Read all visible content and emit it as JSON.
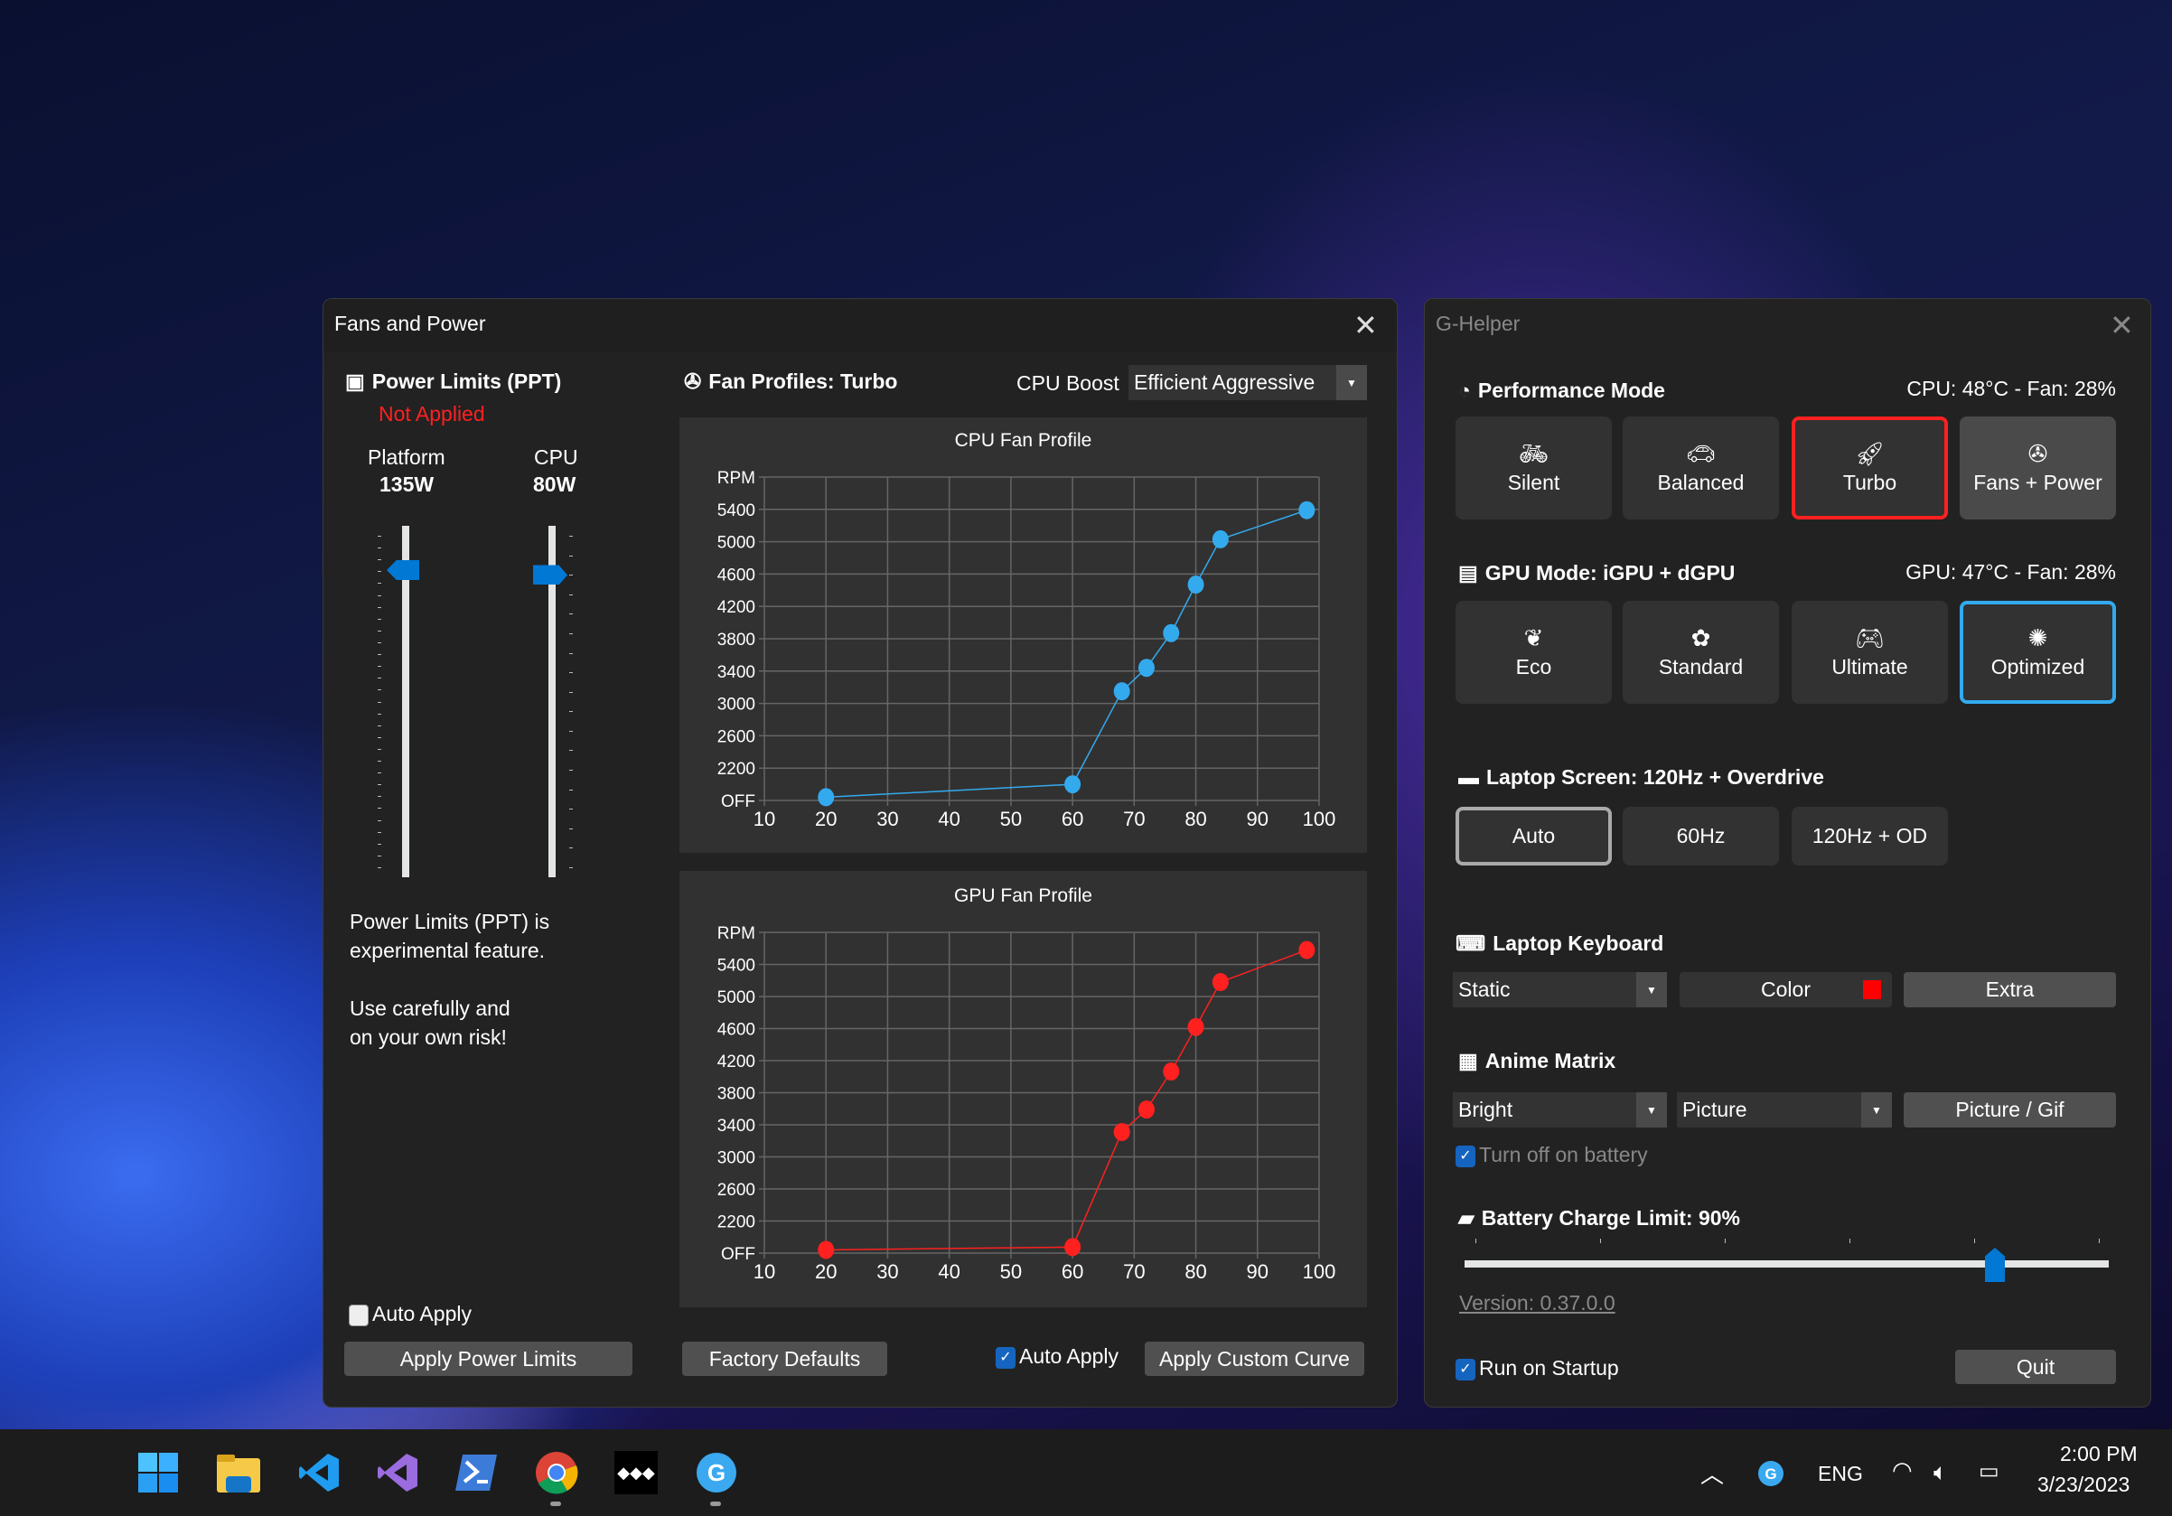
{
  "fans_window": {
    "title": "Fans and Power",
    "power": {
      "header": "Power Limits (PPT)",
      "status": "Not Applied",
      "status_color": "#ff2020",
      "platform": {
        "label": "Platform",
        "value": "135W",
        "level": 0.874
      },
      "cpu": {
        "label": "CPU",
        "value": "80W",
        "level": 0.86
      },
      "note1": [
        "Power Limits (PPT) is",
        "experimental feature."
      ],
      "note2": [
        "Use carefully and",
        "on your own risk!"
      ],
      "auto_apply": {
        "label": "Auto Apply",
        "checked": false
      },
      "apply_button": "Apply Power Limits"
    },
    "fans": {
      "header": "Fan Profiles: Turbo",
      "boost_label": "CPU Boost",
      "boost_value": "Efficient Aggressive",
      "factory_button": "Factory Defaults",
      "auto_apply": {
        "label": "Auto Apply",
        "checked": true
      },
      "apply_button": "Apply Custom Curve"
    }
  },
  "chart_data": [
    {
      "type": "line",
      "title": "CPU Fan Profile",
      "color": "#33aaee",
      "x": [
        20,
        60,
        68,
        72,
        76,
        80,
        84,
        98
      ],
      "y": [
        1840,
        2000,
        3150,
        3440,
        3870,
        4470,
        5030,
        5390
      ],
      "xlim": [
        10,
        100
      ],
      "ylim": [
        1800,
        5800
      ],
      "x_ticks": [
        10,
        20,
        30,
        40,
        50,
        60,
        70,
        80,
        90,
        100
      ],
      "y_ticks": [
        {
          "value": 1800,
          "label": "OFF"
        },
        {
          "value": 2200,
          "label": "2200"
        },
        {
          "value": 2600,
          "label": "2600"
        },
        {
          "value": 3000,
          "label": "3000"
        },
        {
          "value": 3400,
          "label": "3400"
        },
        {
          "value": 3800,
          "label": "3800"
        },
        {
          "value": 4200,
          "label": "4200"
        },
        {
          "value": 4600,
          "label": "4600"
        },
        {
          "value": 5000,
          "label": "5000"
        },
        {
          "value": 5400,
          "label": "5400"
        },
        {
          "value": 5800,
          "label": "RPM"
        }
      ],
      "grid": true
    },
    {
      "type": "line",
      "title": "GPU Fan Profile",
      "color": "#ff2020",
      "x": [
        20,
        60,
        68,
        72,
        76,
        80,
        84,
        98
      ],
      "y": [
        1840,
        1875,
        3310,
        3590,
        4065,
        4620,
        5180,
        5580
      ],
      "xlim": [
        10,
        100
      ],
      "ylim": [
        1800,
        5800
      ],
      "x_ticks": [
        10,
        20,
        30,
        40,
        50,
        60,
        70,
        80,
        90,
        100
      ],
      "y_ticks": [
        {
          "value": 1800,
          "label": "OFF"
        },
        {
          "value": 2200,
          "label": "2200"
        },
        {
          "value": 2600,
          "label": "2600"
        },
        {
          "value": 3000,
          "label": "3000"
        },
        {
          "value": 3400,
          "label": "3400"
        },
        {
          "value": 3800,
          "label": "3800"
        },
        {
          "value": 4200,
          "label": "4200"
        },
        {
          "value": 4600,
          "label": "4600"
        },
        {
          "value": 5000,
          "label": "5000"
        },
        {
          "value": 5400,
          "label": "5400"
        },
        {
          "value": 5800,
          "label": "RPM"
        }
      ],
      "grid": true
    }
  ],
  "ghelper": {
    "title": "G-Helper",
    "perf": {
      "header": "Performance Mode",
      "status": "CPU: 48°C -  Fan: 28%",
      "selected_color": "#ff2020",
      "modes": [
        {
          "label": "Silent",
          "icon": "bicycle-icon"
        },
        {
          "label": "Balanced",
          "icon": "car-icon"
        },
        {
          "label": "Turbo",
          "icon": "rocket-icon",
          "selected": true
        },
        {
          "label": "Fans + Power",
          "icon": "fan-icon"
        }
      ]
    },
    "gpu": {
      "header": "GPU Mode: iGPU + dGPU",
      "status": "GPU: 47°C -  Fan: 28%",
      "selected_color": "#33aaee",
      "modes": [
        {
          "label": "Eco",
          "icon": "leaf-icon"
        },
        {
          "label": "Standard",
          "icon": "flower-icon"
        },
        {
          "label": "Ultimate",
          "icon": "gamepad-icon"
        },
        {
          "label": "Optimized",
          "icon": "bulb-gear-icon",
          "selected": true
        }
      ]
    },
    "screen": {
      "header": "Laptop Screen: 120Hz + Overdrive",
      "modes": [
        {
          "label": "Auto",
          "selected": true
        },
        {
          "label": "60Hz"
        },
        {
          "label": "120Hz + OD"
        }
      ]
    },
    "keyboard": {
      "header": "Laptop Keyboard",
      "mode": "Static",
      "color_label": "Color",
      "color": "#ff0000",
      "extra": "Extra"
    },
    "matrix": {
      "header": "Anime Matrix",
      "brightness": "Bright",
      "mode": "Picture",
      "picture_button": "Picture / Gif",
      "battery_off": {
        "label": "Turn off on battery",
        "checked": true
      }
    },
    "battery": {
      "header": "Battery Charge Limit: 90%",
      "value": 90
    },
    "version": "Version: 0.37.0.0",
    "startup": {
      "label": "Run on Startup",
      "checked": true
    },
    "quit": "Quit"
  },
  "taskbar": {
    "apps": [
      "windows-start-icon",
      "file-explorer-icon",
      "vscode-icon",
      "visual-studio-icon",
      "powershell-icon",
      "chrome-icon",
      "tidal-icon",
      "g-helper-icon"
    ],
    "tray": {
      "language": "ENG",
      "time": "2:00 PM",
      "date": "3/23/2023"
    }
  }
}
